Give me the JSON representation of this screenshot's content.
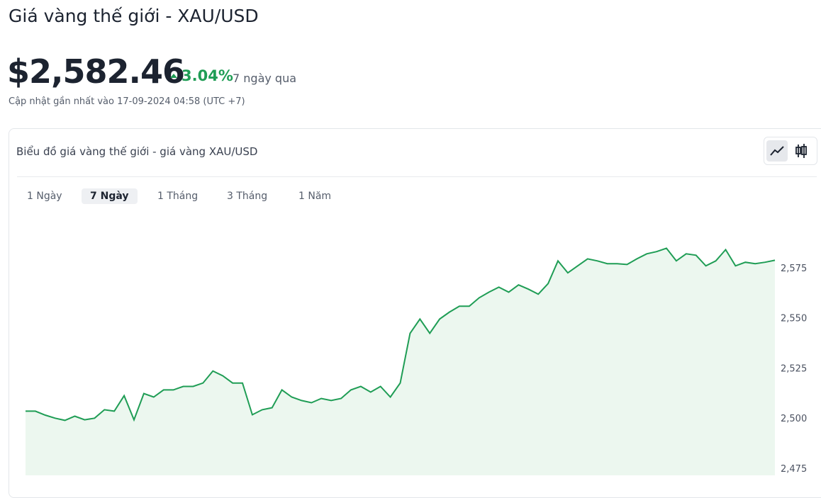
{
  "header": {
    "title": "Giá vàng thế giới - XAU/USD",
    "price": "$2,582.46",
    "change": "3.04%",
    "period": "7 ngày qua",
    "updated": "Cập nhật gần nhất vào 17-09-2024 04:58 (UTC +7)"
  },
  "card": {
    "title": "Biểu đồ giá vàng thế giới - giá vàng XAU/USD",
    "tabs": [
      "1 Ngày",
      "7 Ngày",
      "1 Tháng",
      "3 Tháng",
      "1 Năm"
    ],
    "active_tab": 1
  },
  "chart_data": {
    "type": "area",
    "color": "#1f9d55",
    "fill": "#ecf7ef",
    "values": [
      2504,
      2504,
      2502,
      2500.5,
      2499.4,
      2501.5,
      2499.7,
      2500.5,
      2504.7,
      2504,
      2511.7,
      2499.7,
      2512.8,
      2511,
      2514.6,
      2514.6,
      2516.3,
      2516.3,
      2518,
      2524,
      2521.6,
      2518,
      2518,
      2502.2,
      2504.7,
      2505.7,
      2514.6,
      2511,
      2509.3,
      2508.2,
      2510.3,
      2509.3,
      2510.3,
      2514.6,
      2516.3,
      2513.5,
      2516.3,
      2511,
      2518,
      2542.8,
      2549.9,
      2542.8,
      2549.9,
      2553.4,
      2556.3,
      2556.3,
      2560.5,
      2563.3,
      2565.8,
      2563.3,
      2566.9,
      2564.8,
      2562.3,
      2567.6,
      2578.9,
      2572.9,
      2576.4,
      2579.9,
      2578.9,
      2577.5,
      2577.5,
      2577.1,
      2579.9,
      2582.4,
      2583.5,
      2585.2,
      2578.9,
      2582.4,
      2581.7,
      2576.4,
      2578.9,
      2584.5,
      2576.4,
      2578.2,
      2577.5,
      2578.2,
      2579.2
    ],
    "ylim": [
      2472,
      2603
    ],
    "yticks": [
      {
        "value": 2475,
        "label": "2,475"
      },
      {
        "value": 2500,
        "label": "2,500"
      },
      {
        "value": 2525,
        "label": "2,525"
      },
      {
        "value": 2550,
        "label": "2,550"
      },
      {
        "value": 2575,
        "label": "2,575"
      }
    ],
    "grid": false
  }
}
